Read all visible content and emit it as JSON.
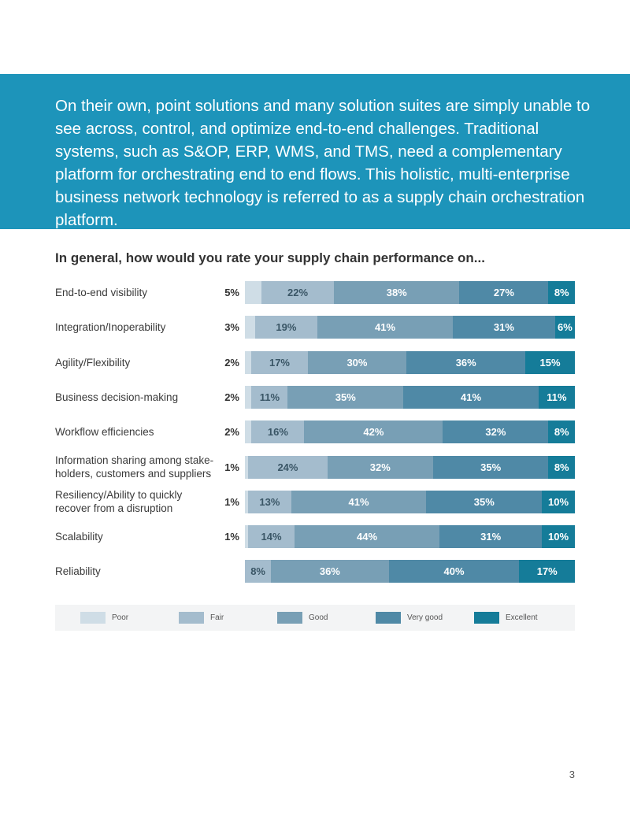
{
  "page": {
    "intro_text": "On their own, point solutions and many solution suites are simply unable to see across, control, and optimize end-to-end challenges. Traditional systems, such as S&OP, ERP, WMS, and TMS, need a complementary platform for orchestrating end to end flows. This holistic, multi-enterprise business network technology is referred to as a supply chain orchestration platform.",
    "page_number": "3"
  },
  "chart_data": {
    "type": "bar",
    "orientation": "horizontal-stacked-100",
    "title": "In general, how would you rate your supply chain performance on...",
    "series_names": [
      "Poor",
      "Fair",
      "Good",
      "Very good",
      "Excellent"
    ],
    "colors": [
      "#cfdde6",
      "#a4bccd",
      "#789fb5",
      "#4f89a6",
      "#157c99"
    ],
    "label_colors": [
      "#333333",
      "#3a5666",
      "#ffffff",
      "#ffffff",
      "#ffffff"
    ],
    "legend_position": "bottom",
    "categories": [
      "End-to-end visibility",
      "Integration/Inoperability",
      "Agility/Flexibility",
      "Business decision-making",
      "Workflow efficiencies",
      "Information sharing among stake-holders, customers and suppliers",
      "Resiliency/Ability to quickly recover from a disruption",
      "Scalability",
      "Reliability"
    ],
    "category_lines": [
      [
        "End-to-end visibility"
      ],
      [
        "Integration/Inoperability"
      ],
      [
        "Agility/Flexibility"
      ],
      [
        "Business decision-making"
      ],
      [
        "Workflow efficiencies"
      ],
      [
        "Information sharing among stake-",
        "holders, customers and suppliers"
      ],
      [
        "Resiliency/Ability to quickly",
        "recover from a disruption"
      ],
      [
        "Scalability"
      ],
      [
        "Reliability"
      ]
    ],
    "values": [
      [
        5,
        22,
        38,
        27,
        8
      ],
      [
        3,
        19,
        41,
        31,
        6
      ],
      [
        2,
        17,
        30,
        36,
        15
      ],
      [
        2,
        11,
        35,
        41,
        11
      ],
      [
        2,
        16,
        42,
        32,
        8
      ],
      [
        1,
        24,
        32,
        35,
        8
      ],
      [
        1,
        13,
        41,
        35,
        10
      ],
      [
        1,
        14,
        44,
        31,
        10
      ],
      [
        0,
        8,
        36,
        40,
        17
      ]
    ],
    "labels": [
      [
        "5%",
        "22%",
        "38%",
        "27%",
        "8%"
      ],
      [
        "3%",
        "19%",
        "41%",
        "31%",
        "6%"
      ],
      [
        "2%",
        "17%",
        "30%",
        "36%",
        "15%"
      ],
      [
        "2%",
        "11%",
        "35%",
        "41%",
        "11%"
      ],
      [
        "2%",
        "16%",
        "42%",
        "32%",
        "8%"
      ],
      [
        "1%",
        "24%",
        "32%",
        "35%",
        "8%"
      ],
      [
        "1%",
        "13%",
        "41%",
        "35%",
        "10%"
      ],
      [
        "1%",
        "14%",
        "44%",
        "31%",
        "10%"
      ],
      [
        "",
        "8%",
        "36%",
        "40%",
        "17%"
      ]
    ]
  }
}
